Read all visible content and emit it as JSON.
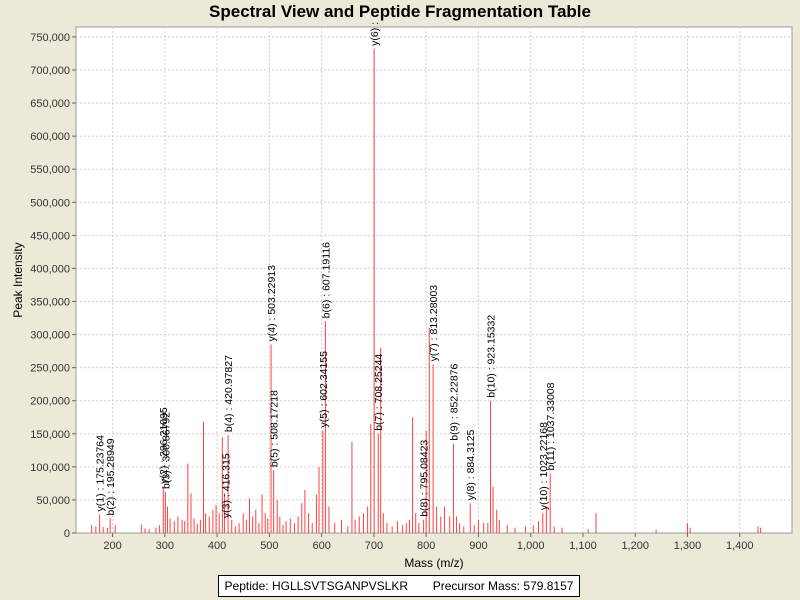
{
  "chart_data": {
    "type": "bar",
    "title": "Spectral View and Peptide Fragmentation Table",
    "xlabel": "Mass (m/z)",
    "ylabel": "Peak Intensity",
    "xlim": [
      130,
      1500
    ],
    "ylim": [
      0,
      765000
    ],
    "x_ticks": [
      200,
      300,
      400,
      500,
      600,
      700,
      800,
      900,
      1000,
      1100,
      1200,
      1300,
      1400
    ],
    "x_tick_labels": [
      "200",
      "300",
      "400",
      "500",
      "600",
      "700",
      "800",
      "900",
      "1,000",
      "1,100",
      "1,200",
      "1,300",
      "1,400"
    ],
    "y_ticks": [
      0,
      50000,
      100000,
      150000,
      200000,
      250000,
      300000,
      350000,
      400000,
      450000,
      500000,
      550000,
      600000,
      650000,
      700000,
      750000
    ],
    "y_tick_labels": [
      "0",
      "50,000",
      "100,000",
      "150,000",
      "200,000",
      "250,000",
      "300,000",
      "350,000",
      "400,000",
      "450,000",
      "500,000",
      "550,000",
      "600,000",
      "650,000",
      "700,000",
      "750,000"
    ],
    "grid": true,
    "peak_color": "#ff4040",
    "peaks": [
      [
        160,
        12000
      ],
      [
        168,
        10000
      ],
      [
        175.2,
        28000
      ],
      [
        182,
        9000
      ],
      [
        190,
        8000
      ],
      [
        195.3,
        22000
      ],
      [
        205,
        12000
      ],
      [
        255,
        13000
      ],
      [
        262,
        7000
      ],
      [
        270,
        6000
      ],
      [
        283,
        8000
      ],
      [
        290,
        12000
      ],
      [
        297,
        70000
      ],
      [
        301,
        62000
      ],
      [
        305,
        40000
      ],
      [
        310,
        22000
      ],
      [
        318,
        18000
      ],
      [
        325,
        25000
      ],
      [
        333,
        20000
      ],
      [
        338,
        18000
      ],
      [
        344,
        105000
      ],
      [
        350,
        60000
      ],
      [
        356,
        22000
      ],
      [
        362,
        14000
      ],
      [
        368,
        20000
      ],
      [
        374,
        168000
      ],
      [
        378,
        30000
      ],
      [
        385,
        25000
      ],
      [
        392,
        35000
      ],
      [
        398,
        42000
      ],
      [
        404,
        30000
      ],
      [
        410,
        145000
      ],
      [
        414,
        60000
      ],
      [
        421,
        148000
      ],
      [
        428,
        20000
      ],
      [
        435,
        10000
      ],
      [
        442,
        15000
      ],
      [
        450,
        30000
      ],
      [
        456,
        20000
      ],
      [
        462,
        52000
      ],
      [
        468,
        25000
      ],
      [
        474,
        35000
      ],
      [
        480,
        15000
      ],
      [
        486,
        58000
      ],
      [
        492,
        30000
      ],
      [
        497,
        22000
      ],
      [
        503.2,
        285000
      ],
      [
        508.2,
        95000
      ],
      [
        515,
        50000
      ],
      [
        520,
        25000
      ],
      [
        526,
        12000
      ],
      [
        532,
        18000
      ],
      [
        540,
        22000
      ],
      [
        548,
        15000
      ],
      [
        555,
        25000
      ],
      [
        562,
        45000
      ],
      [
        568,
        65000
      ],
      [
        575,
        30000
      ],
      [
        582,
        15000
      ],
      [
        590,
        58000
      ],
      [
        595,
        100000
      ],
      [
        602.3,
        155000
      ],
      [
        607.2,
        320000
      ],
      [
        614,
        40000
      ],
      [
        625,
        15000
      ],
      [
        638,
        20000
      ],
      [
        650,
        10000
      ],
      [
        658,
        138000
      ],
      [
        664,
        20000
      ],
      [
        672,
        25000
      ],
      [
        680,
        30000
      ],
      [
        688,
        40000
      ],
      [
        694,
        165000
      ],
      [
        700.5,
        732000
      ],
      [
        708.3,
        150000
      ],
      [
        713,
        280000
      ],
      [
        718,
        30000
      ],
      [
        725,
        15000
      ],
      [
        735,
        10000
      ],
      [
        745,
        18000
      ],
      [
        755,
        12000
      ],
      [
        762,
        15000
      ],
      [
        768,
        20000
      ],
      [
        774,
        175000
      ],
      [
        780,
        30000
      ],
      [
        786,
        15000
      ],
      [
        795.1,
        20000
      ],
      [
        800,
        155000
      ],
      [
        806,
        310000
      ],
      [
        813.3,
        255000
      ],
      [
        820,
        40000
      ],
      [
        828,
        25000
      ],
      [
        835,
        40000
      ],
      [
        845,
        25000
      ],
      [
        852.2,
        135000
      ],
      [
        858,
        25000
      ],
      [
        864,
        15000
      ],
      [
        872,
        10000
      ],
      [
        884.3,
        45000
      ],
      [
        892,
        12000
      ],
      [
        900,
        20000
      ],
      [
        910,
        15000
      ],
      [
        918,
        15000
      ],
      [
        923.2,
        200000
      ],
      [
        928,
        70000
      ],
      [
        935,
        35000
      ],
      [
        940,
        20000
      ],
      [
        955,
        12000
      ],
      [
        970,
        8000
      ],
      [
        990,
        10000
      ],
      [
        1005,
        12000
      ],
      [
        1015,
        18000
      ],
      [
        1023.2,
        30000
      ],
      [
        1030,
        40000
      ],
      [
        1037.3,
        90000
      ],
      [
        1045,
        10000
      ],
      [
        1060,
        8000
      ],
      [
        1110,
        6000
      ],
      [
        1125,
        30000
      ],
      [
        1240,
        5000
      ],
      [
        1300,
        15000
      ],
      [
        1305,
        8000
      ],
      [
        1435,
        10000
      ],
      [
        1440,
        8000
      ]
    ],
    "annotations": [
      {
        "x": 175.23764,
        "y": 28000,
        "text": "y(1) : 175.23764"
      },
      {
        "x": 195.28949,
        "y": 22000,
        "text": "b(2) : 195.28949"
      },
      {
        "x": 296.21095,
        "y": 70000,
        "text": "y(2) : 296.21095"
      },
      {
        "x": 300.86792,
        "y": 62000,
        "text": "b(3) : 300.86792"
      },
      {
        "x": 416.315,
        "y": 18000,
        "text": "y(3) : 416.315"
      },
      {
        "x": 420.97827,
        "y": 148000,
        "text": "b(4) : 420.97827"
      },
      {
        "x": 503.22913,
        "y": 285000,
        "text": "y(4) : 503.22913"
      },
      {
        "x": 508.17218,
        "y": 95000,
        "text": "b(5) : 508.17218"
      },
      {
        "x": 602.34155,
        "y": 155000,
        "text": "y(5) : 602.34155"
      },
      {
        "x": 607.19116,
        "y": 320000,
        "text": "b(6) : 607.19116"
      },
      {
        "x": 700.5,
        "y": 732000,
        "text": "y(6) :"
      },
      {
        "x": 708.25244,
        "y": 150000,
        "text": "b(7) : 708.25244"
      },
      {
        "x": 795.08423,
        "y": 20000,
        "text": "b(8) : 795.08423"
      },
      {
        "x": 813.28003,
        "y": 255000,
        "text": "y(7) : 813.28003"
      },
      {
        "x": 852.22876,
        "y": 135000,
        "text": "b(9) : 852.22876"
      },
      {
        "x": 884.3125,
        "y": 45000,
        "text": "y(8) : 884.3125"
      },
      {
        "x": 923.15332,
        "y": 200000,
        "text": "b(10) : 923.15332"
      },
      {
        "x": 1023.22168,
        "y": 30000,
        "text": "y(10) : 1023.22168"
      },
      {
        "x": 1037.33008,
        "y": 90000,
        "text": "b(11) : 1037.33008"
      }
    ]
  },
  "footer": {
    "peptide_label": "Peptide:",
    "peptide_value": "HGLLSVTSGANPVSLKR",
    "precursor_label": "Precursor Mass:",
    "precursor_value": "579.8157"
  }
}
